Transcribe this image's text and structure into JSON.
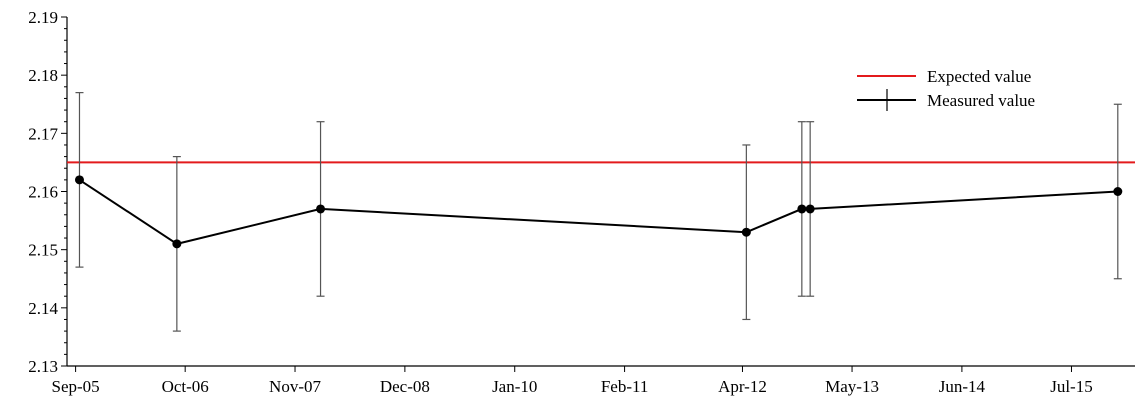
{
  "chart_data": {
    "type": "line",
    "title": "",
    "xlabel": "",
    "ylabel": "",
    "x_tick_labels": [
      "Sep-05",
      "Oct-06",
      "Nov-07",
      "Dec-08",
      "Jan-10",
      "Feb-11",
      "Apr-12",
      "May-13",
      "Jun-14",
      "Jul-15"
    ],
    "x_tick_dates": [
      "2005-09-01",
      "2006-10-01",
      "2007-11-01",
      "2008-12-01",
      "2010-01-01",
      "2011-02-01",
      "2012-04-01",
      "2013-05-01",
      "2014-06-01",
      "2015-07-01"
    ],
    "xlim": [
      "2005-08-01",
      "2016-02-15"
    ],
    "ylim": [
      2.13,
      2.19
    ],
    "y_ticks": [
      2.13,
      2.14,
      2.15,
      2.16,
      2.17,
      2.18,
      2.19
    ],
    "y_tick_labels": [
      "2.13",
      "2.14",
      "2.15",
      "2.16",
      "2.17",
      "2.18",
      "2.19"
    ],
    "grid": false,
    "legend": "top-right",
    "series": [
      {
        "name": "Expected value",
        "color": "#e31a1c",
        "x": [
          "2005-08-01",
          "2016-02-15"
        ],
        "values": [
          2.165,
          2.165
        ]
      },
      {
        "name": "Measured value",
        "color": "#000000",
        "error_bar_color": "#555555",
        "x": [
          "2005-09-15",
          "2006-09-01",
          "2008-02-01",
          "2012-04-15",
          "2012-11-01",
          "2012-12-01",
          "2015-12-15"
        ],
        "values": [
          2.162,
          2.151,
          2.157,
          2.153,
          2.157,
          2.157,
          2.16
        ],
        "error": [
          0.015,
          0.015,
          0.015,
          0.015,
          0.015,
          0.015,
          0.015
        ]
      }
    ]
  }
}
